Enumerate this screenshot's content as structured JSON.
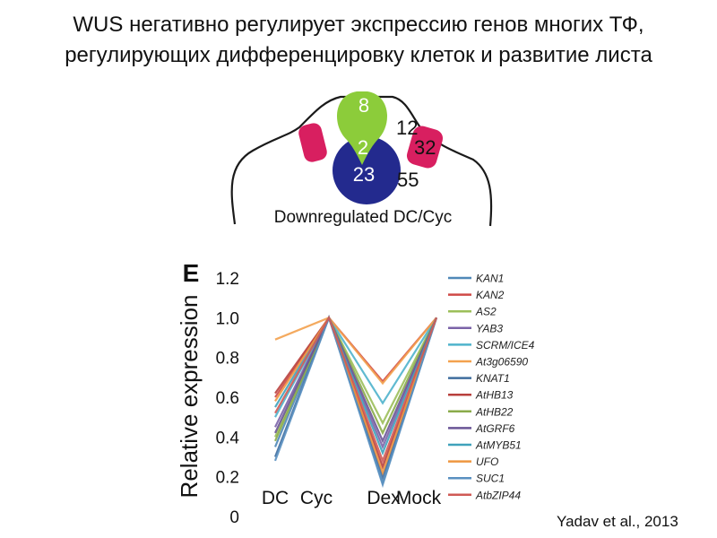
{
  "title_lines": [
    "WUS негативно регулирует экспрессию генов многих ТФ,",
    "регулирующих дифференцировку клеток и развитие листа"
  ],
  "diagram": {
    "numbers": {
      "green_top": "8",
      "green_overlap": "2",
      "blue": "23",
      "right_top": "12",
      "magenta_right": "32",
      "right_bottom": "55"
    },
    "caption": "Downregulated DC/Cyc",
    "colors": {
      "green": "#8ccc3a",
      "blue": "#232a8e",
      "magenta": "#d81f60"
    }
  },
  "chart_data": {
    "type": "line",
    "panel_letter": "Е",
    "ylabel": "Relative expression",
    "ylim": [
      0,
      1.2
    ],
    "yticks": [
      "0",
      "0.2",
      "0.4",
      "0.6",
      "0.8",
      "1.0",
      "1.2"
    ],
    "x_labels": [
      "DC",
      "Cyc",
      "Dex",
      "Mock"
    ],
    "series": [
      {
        "name": "KAN1",
        "color": "#4f88b8",
        "values": [
          0.35,
          1.0,
          0.17,
          1.0
        ]
      },
      {
        "name": "KAN2",
        "color": "#cf4a47",
        "values": [
          0.6,
          1.0,
          0.68,
          1.0
        ]
      },
      {
        "name": "AS2",
        "color": "#9cbf5a",
        "values": [
          0.4,
          1.0,
          0.47,
          1.0
        ]
      },
      {
        "name": "YAB3",
        "color": "#7b63a8",
        "values": [
          0.45,
          1.0,
          0.35,
          1.0
        ]
      },
      {
        "name": "SCRM/ICE4",
        "color": "#4fb3cc",
        "values": [
          0.5,
          1.0,
          0.57,
          1.0
        ]
      },
      {
        "name": "At3g06590",
        "color": "#f3a14e",
        "values": [
          0.89,
          1.0,
          0.67,
          1.0
        ]
      },
      {
        "name": "KNAT1",
        "color": "#3f6d9e",
        "values": [
          0.3,
          1.0,
          0.2,
          1.0
        ]
      },
      {
        "name": "AtHB13",
        "color": "#b8403d",
        "values": [
          0.62,
          1.0,
          0.25,
          1.0
        ]
      },
      {
        "name": "AtHB22",
        "color": "#8aab4a",
        "values": [
          0.38,
          1.0,
          0.42,
          1.0
        ]
      },
      {
        "name": "AtGRF6",
        "color": "#6a5596",
        "values": [
          0.42,
          1.0,
          0.38,
          1.0
        ]
      },
      {
        "name": "AtMYB51",
        "color": "#3fa2bb",
        "values": [
          0.55,
          1.0,
          0.32,
          1.0
        ]
      },
      {
        "name": "UFO",
        "color": "#ee9640",
        "values": [
          0.58,
          1.0,
          0.22,
          1.0
        ]
      },
      {
        "name": "SUC1",
        "color": "#5a90c0",
        "values": [
          0.28,
          1.0,
          0.16,
          1.0
        ]
      },
      {
        "name": "AtbZIP44",
        "color": "#d05a55",
        "values": [
          0.52,
          1.0,
          0.28,
          1.0
        ]
      }
    ]
  },
  "citation": "Yadav et al., 2013"
}
